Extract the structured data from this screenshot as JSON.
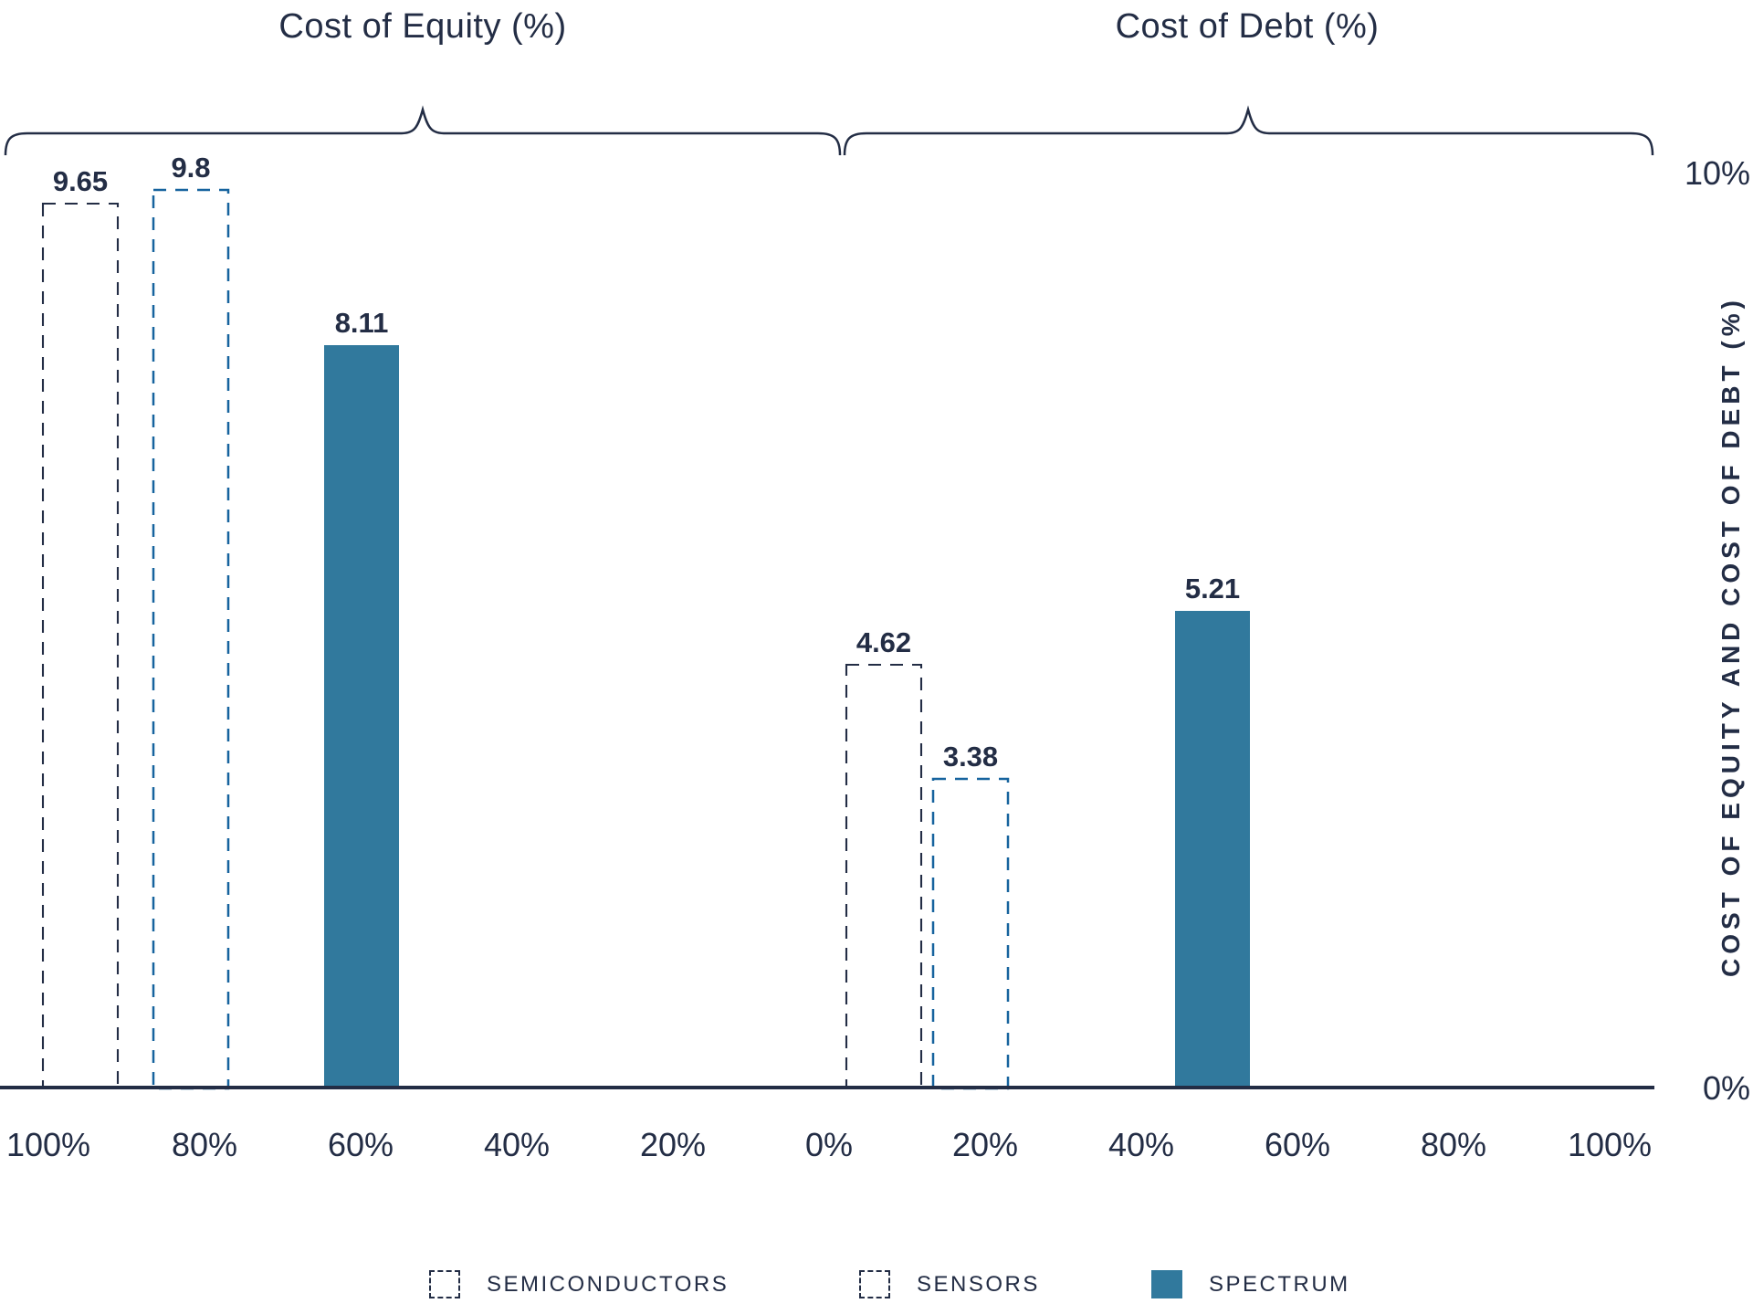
{
  "chart_data": {
    "type": "bar",
    "title": "",
    "groups": [
      {
        "label": "Cost of Equity (%)",
        "bars": [
          {
            "series": "SEMICONDUCTORS",
            "value": 9.65,
            "label": "9.65"
          },
          {
            "series": "SENSORS",
            "value": 9.8,
            "label": "9.8"
          },
          {
            "series": "SPECTRUM",
            "value": 8.11,
            "label": "8.11"
          }
        ]
      },
      {
        "label": "Cost of Debt (%)",
        "bars": [
          {
            "series": "SEMICONDUCTORS",
            "value": 4.62,
            "label": "4.62"
          },
          {
            "series": "SENSORS",
            "value": 3.38,
            "label": "3.38"
          },
          {
            "series": "SPECTRUM",
            "value": 5.21,
            "label": "5.21"
          }
        ]
      }
    ],
    "x_ticks": [
      "100%",
      "80%",
      "60%",
      "40%",
      "20%",
      "0%",
      "20%",
      "40%",
      "60%",
      "80%",
      "100%"
    ],
    "y_axis": {
      "title": "COST OF EQUITY AND COST OF DEBT (%)",
      "top_label": "10%",
      "bottom_label": "0%",
      "min": 0,
      "max": 10,
      "grid": false
    },
    "legend": [
      {
        "label": "SEMICONDUCTORS",
        "style": "dashed-navy"
      },
      {
        "label": "SENSORS",
        "style": "dashed-blue"
      },
      {
        "label": "SPECTRUM",
        "style": "solid"
      }
    ],
    "legend_position": "bottom",
    "series_styles": {
      "SEMICONDUCTORS": {
        "type": "dashed",
        "color": "#232d45"
      },
      "SENSORS": {
        "type": "dashed",
        "color": "#16639e"
      },
      "SPECTRUM": {
        "type": "solid",
        "color": "#31799d"
      }
    },
    "colors": {
      "navy": "#232d45",
      "blue": "#16639e",
      "teal": "#31799d"
    }
  }
}
